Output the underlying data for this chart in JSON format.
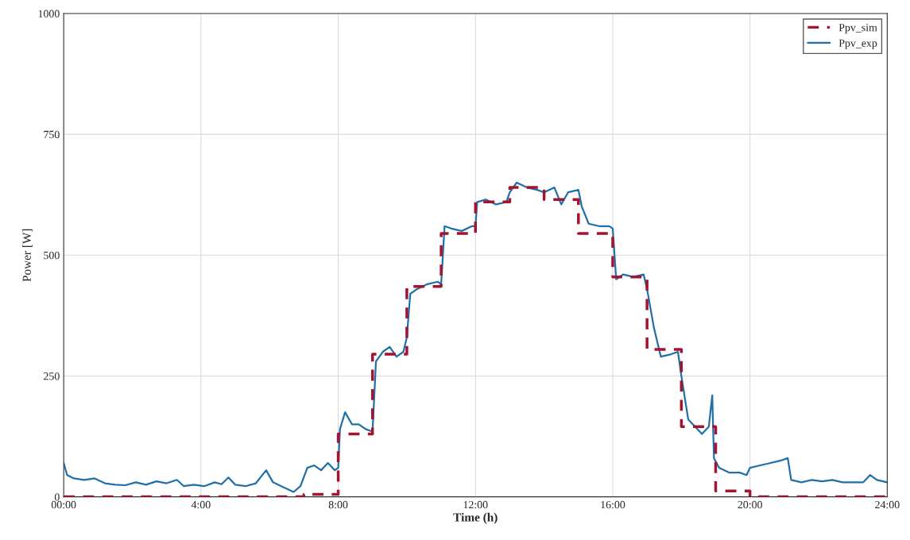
{
  "chart_data": {
    "type": "line",
    "xlabel": "Time (h)",
    "ylabel": "Power [W]",
    "xlim": [
      0,
      24
    ],
    "ylim": [
      0,
      1000
    ],
    "xticks": [
      {
        "value": 0,
        "label": "00:00"
      },
      {
        "value": 4,
        "label": "4:00"
      },
      {
        "value": 8,
        "label": "8:00"
      },
      {
        "value": 12,
        "label": "12:00"
      },
      {
        "value": 16,
        "label": "16:00"
      },
      {
        "value": 20,
        "label": "20:00"
      },
      {
        "value": 24,
        "label": "24:00"
      }
    ],
    "yticks": [
      0,
      250,
      500,
      750,
      1000
    ],
    "grid": true,
    "legend": "top right",
    "series": [
      {
        "name": "Ppv_sim",
        "type": "step",
        "line_style": "dashed",
        "color": "#a2142f",
        "x": [
          0,
          7,
          8,
          9,
          10,
          11,
          12,
          13,
          14,
          15,
          16,
          17,
          18,
          19,
          20,
          24
        ],
        "values": [
          0,
          5,
          130,
          295,
          435,
          545,
          610,
          640,
          615,
          545,
          455,
          305,
          145,
          12,
          0,
          0
        ]
      },
      {
        "name": "Ppv_exp",
        "line_style": "solid",
        "color": "#1f6fa8",
        "x": [
          0.0,
          0.1,
          0.3,
          0.6,
          0.9,
          1.2,
          1.5,
          1.8,
          2.1,
          2.4,
          2.7,
          3.0,
          3.3,
          3.5,
          3.8,
          4.1,
          4.4,
          4.6,
          4.8,
          5.0,
          5.3,
          5.6,
          5.9,
          6.1,
          6.4,
          6.7,
          6.9,
          7.1,
          7.3,
          7.5,
          7.7,
          7.9,
          8.0,
          8.05,
          8.2,
          8.4,
          8.6,
          8.8,
          9.0,
          9.1,
          9.3,
          9.5,
          9.7,
          9.9,
          10.0,
          10.1,
          10.3,
          10.6,
          10.9,
          11.0,
          11.1,
          11.3,
          11.6,
          11.9,
          12.0,
          12.05,
          12.3,
          12.6,
          12.9,
          13.0,
          13.2,
          13.5,
          13.8,
          14.0,
          14.3,
          14.5,
          14.7,
          15.0,
          15.1,
          15.3,
          15.6,
          15.9,
          16.0,
          16.1,
          16.3,
          16.6,
          16.9,
          17.0,
          17.2,
          17.4,
          17.7,
          17.9,
          18.0,
          18.2,
          18.4,
          18.6,
          18.8,
          18.9,
          18.95,
          19.1,
          19.4,
          19.7,
          19.9,
          20.0,
          20.3,
          20.6,
          20.9,
          21.1,
          21.2,
          21.5,
          21.8,
          22.1,
          22.4,
          22.7,
          23.0,
          23.3,
          23.5,
          23.7,
          24.0
        ],
        "values": [
          70,
          45,
          38,
          35,
          38,
          28,
          25,
          24,
          30,
          25,
          32,
          28,
          35,
          22,
          25,
          22,
          30,
          26,
          40,
          25,
          22,
          28,
          55,
          30,
          20,
          10,
          22,
          60,
          65,
          55,
          70,
          55,
          60,
          140,
          175,
          150,
          150,
          140,
          135,
          280,
          300,
          310,
          290,
          300,
          330,
          420,
          430,
          440,
          445,
          440,
          560,
          555,
          550,
          560,
          560,
          610,
          615,
          605,
          610,
          630,
          650,
          640,
          635,
          630,
          640,
          605,
          630,
          635,
          600,
          565,
          560,
          560,
          555,
          450,
          460,
          455,
          460,
          430,
          350,
          290,
          295,
          300,
          250,
          160,
          145,
          130,
          145,
          210,
          80,
          60,
          50,
          50,
          45,
          60,
          65,
          70,
          75,
          80,
          35,
          30,
          35,
          32,
          35,
          30,
          30,
          30,
          45,
          35,
          30
        ]
      }
    ]
  }
}
